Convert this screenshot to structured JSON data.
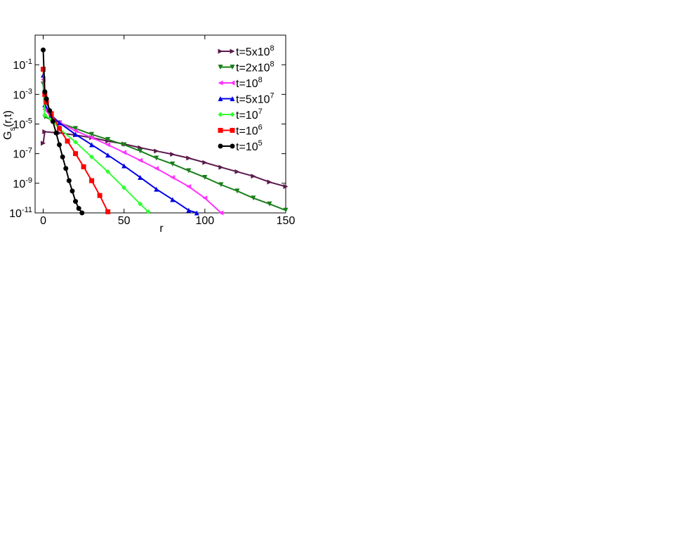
{
  "chart_data": {
    "type": "line",
    "x_label": "r",
    "y_label": "G_s(r,t)",
    "log_y": true,
    "xlim": [
      -5,
      150
    ],
    "xticks": [
      0,
      50,
      100,
      150
    ],
    "ylim": [
      1e-11,
      10
    ],
    "yticks": [
      {
        "value": 0.1,
        "label": "10^-1"
      },
      {
        "value": 0.001,
        "label": "10^-3"
      },
      {
        "value": 1e-05,
        "label": "10^-5"
      },
      {
        "value": 1e-07,
        "label": "10^-7"
      },
      {
        "value": 1e-09,
        "label": "10^-9"
      },
      {
        "value": 1e-11,
        "label": "10^-11"
      }
    ],
    "legend": "upper right",
    "series": [
      {
        "name": "t=5x10^8",
        "color": "#5b1a4c",
        "marker": "right",
        "x": [
          0,
          1,
          10,
          20,
          30,
          40,
          50,
          60,
          70,
          80,
          90,
          100,
          110,
          120,
          130,
          140,
          150
        ],
        "values": [
          5e-07,
          3e-06,
          2.5e-06,
          1.8e-06,
          1.2e-06,
          7e-07,
          4.5e-07,
          2.5e-07,
          1.5e-07,
          9e-08,
          5e-08,
          2.5e-08,
          1.2e-08,
          6e-09,
          3e-09,
          1.2e-09,
          6e-10
        ]
      },
      {
        "name": "t=2x10^8",
        "color": "#1a7f1a",
        "marker": "down",
        "x": [
          0,
          1,
          10,
          20,
          30,
          40,
          50,
          60,
          70,
          80,
          90,
          100,
          110,
          120,
          130,
          140,
          150
        ],
        "values": [
          0.005,
          3e-05,
          1.2e-05,
          5e-06,
          2e-06,
          9e-07,
          4e-07,
          1.5e-07,
          5e-08,
          2e-08,
          7e-09,
          2.5e-09,
          8e-10,
          3e-10,
          1e-10,
          4e-11,
          1.5e-11
        ]
      },
      {
        "name": "t=10^8",
        "color": "#ff33ff",
        "marker": "left",
        "x": [
          0,
          1,
          5,
          10,
          20,
          30,
          40,
          50,
          60,
          70,
          80,
          90,
          100,
          110
        ],
        "values": [
          0.01,
          0.0001,
          3e-05,
          1.3e-05,
          3.5e-06,
          1.2e-06,
          4e-07,
          1.2e-07,
          3.5e-08,
          1e-08,
          2.5e-09,
          6e-10,
          1e-10,
          1e-11
        ]
      },
      {
        "name": "t=5x10^7",
        "color": "#0000e6",
        "marker": "up",
        "x": [
          0,
          1,
          5,
          10,
          20,
          30,
          40,
          50,
          60,
          70,
          80,
          90,
          95
        ],
        "values": [
          0.02,
          0.0002,
          4e-05,
          1.2e-05,
          2e-06,
          4e-07,
          8e-08,
          1.5e-08,
          2.5e-09,
          4e-10,
          8e-11,
          1.5e-11,
          1e-11
        ]
      },
      {
        "name": "t=10^7",
        "color": "#33ff33",
        "marker": "diamond",
        "x": [
          0,
          1,
          5,
          10,
          20,
          30,
          40,
          50,
          60,
          65
        ],
        "values": [
          0.05,
          4e-05,
          2e-05,
          5e-06,
          6e-07,
          6e-08,
          6e-09,
          5e-10,
          4e-11,
          1.2e-11
        ]
      },
      {
        "name": "t=10^6",
        "color": "#ff0000",
        "marker": "square",
        "x": [
          0,
          1,
          2,
          5,
          10,
          15,
          20,
          25,
          30,
          35,
          40
        ],
        "values": [
          0.05,
          0.001,
          0.0003,
          5e-05,
          5e-06,
          7e-07,
          1e-07,
          1.3e-08,
          1.5e-09,
          1.5e-10,
          1.2e-11
        ]
      },
      {
        "name": "t=10^5",
        "color": "#000000",
        "marker": "circle",
        "x": [
          0,
          1,
          2,
          4,
          6,
          8,
          10,
          12,
          14,
          16,
          18,
          20,
          22,
          24
        ],
        "values": [
          1,
          0.0015,
          0.0005,
          8e-05,
          1.5e-05,
          2.5e-06,
          4e-07,
          6e-08,
          1e-08,
          1.5e-09,
          3e-10,
          6e-11,
          2e-11,
          1e-11
        ]
      }
    ]
  }
}
